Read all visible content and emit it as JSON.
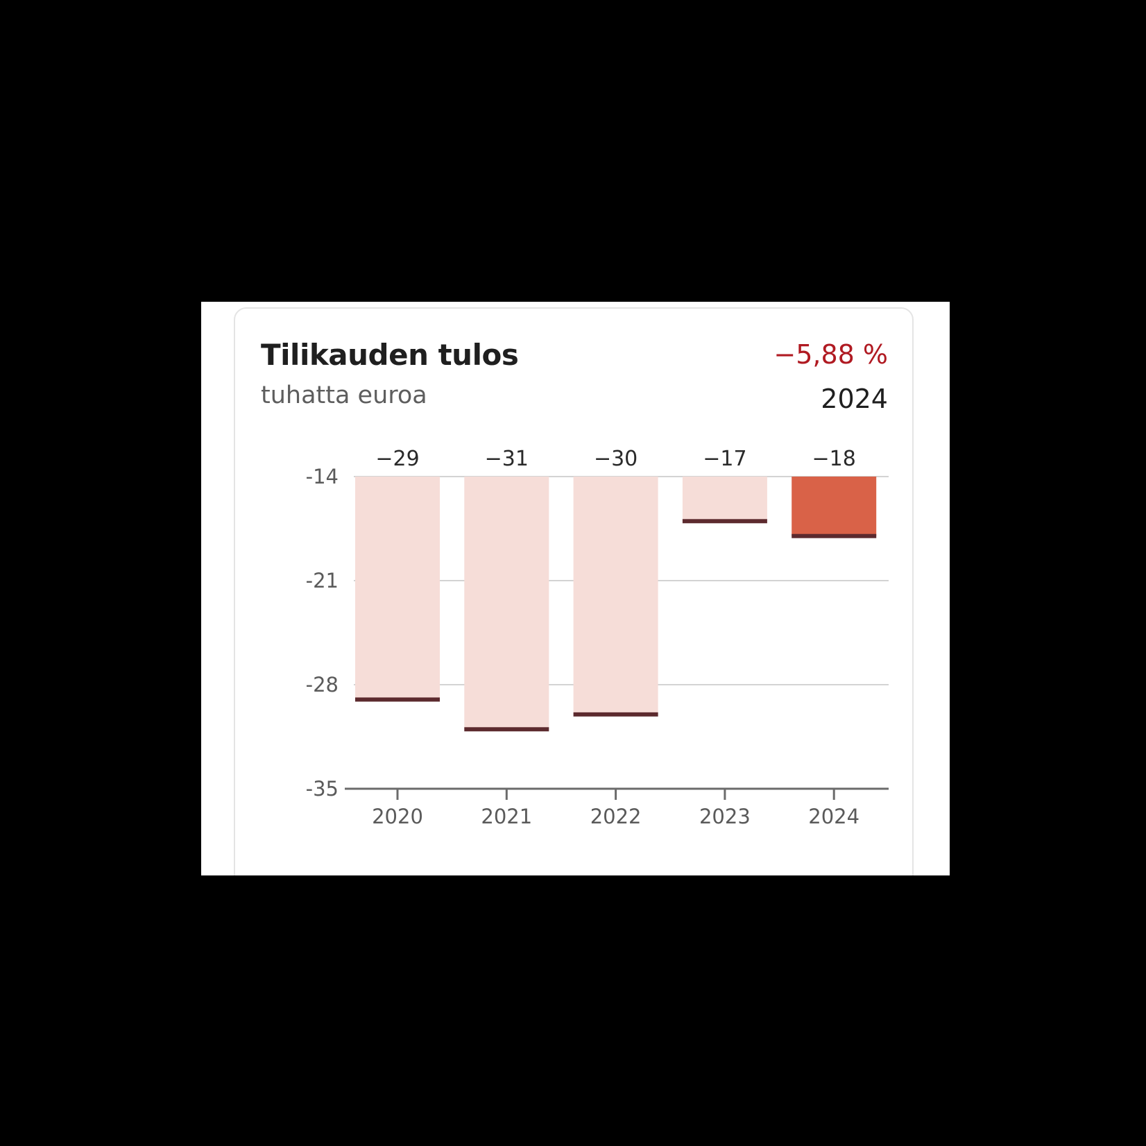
{
  "card": {
    "title": "Tilikauden tulos",
    "subtitle": "tuhatta euroa",
    "change": "−5,88 %",
    "year": "2024"
  },
  "colors": {
    "bar": "#f6ddd8",
    "bar_highlight": "#d96248",
    "bar_edge": "#5c2a2e",
    "change_negative": "#b01a22",
    "grid": "#d3d3d3",
    "axis": "#6b6b6b"
  },
  "chart_data": {
    "type": "bar",
    "categories": [
      "2020",
      "2021",
      "2022",
      "2023",
      "2024"
    ],
    "values": [
      -29,
      -31,
      -30,
      -17,
      -18
    ],
    "value_labels": [
      "−29",
      "−31",
      "−30",
      "−17",
      "−18"
    ],
    "highlight_category": "2024",
    "title": "Tilikauden tulos",
    "ylabel": "tuhatta euroa",
    "ylim": [
      -35,
      -14
    ],
    "yticks": [
      -14,
      -21,
      -28,
      -35
    ],
    "ytick_labels": [
      "-14",
      "-21",
      "-28",
      "-35"
    ],
    "grid": true
  }
}
